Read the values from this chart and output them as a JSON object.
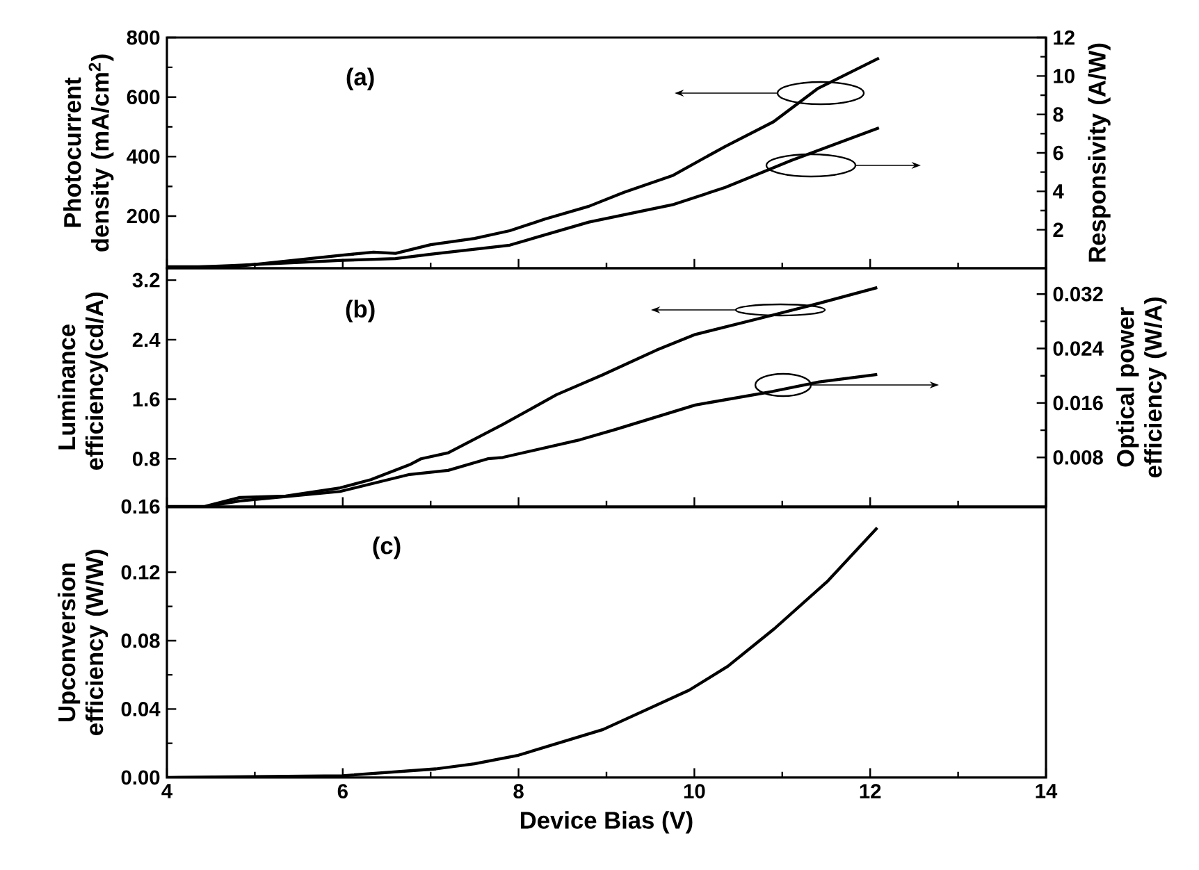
{
  "chart_data": [
    {
      "type": "line",
      "annotations": [
        "(a)"
      ],
      "ylabel": "Photocurrent density (mA/cm$^{2}$)",
      "y2label": "Responsivity (A/W)",
      "xlim": [
        4,
        14
      ],
      "xticks": [
        4,
        6,
        8,
        10,
        12,
        14
      ],
      "ylim": [
        25,
        800
      ],
      "yticks": [
        200,
        400,
        600,
        800
      ],
      "y2lim": [
        0,
        12
      ],
      "y2ticks": [
        2,
        4,
        6,
        8,
        10,
        12
      ],
      "tick_labels": "y",
      "series": [
        {
          "color": "#000000",
          "x": [
            4,
            4.75,
            6,
            6.35,
            6.6,
            7.0,
            7.5,
            7.9,
            8.3,
            8.8,
            9.2,
            9.75,
            10.35,
            10.9,
            11.4,
            12.1
          ],
          "values": [
            30,
            30,
            69,
            79,
            75,
            104,
            125,
            151,
            190,
            233,
            280,
            336,
            434,
            517,
            628,
            731
          ]
        },
        {
          "color": "#000000",
          "axis": "y2",
          "x": [
            4,
            4.75,
            6,
            6.6,
            7.0,
            7.9,
            8.8,
            9.75,
            10.35,
            11.1,
            12.1
          ],
          "values": [
            0,
            0.14,
            0.41,
            0.5,
            0.73,
            1.2,
            2.4,
            3.3,
            4.2,
            5.6,
            7.3
          ]
        }
      ]
    },
    {
      "type": "line",
      "annotations": [
        "(b)"
      ],
      "ylabel": "Luminance efficiency(cd/A)",
      "y2label": "Optical power efficiency (W/A)",
      "xlim": [
        4,
        14
      ],
      "xticks": [
        4,
        6,
        8,
        10,
        12,
        14
      ],
      "ylim": [
        0.16,
        3.36
      ],
      "yticks": [
        0.16,
        0.8,
        1.6,
        2.4,
        3.2
      ],
      "y2lim": [
        0.0008,
        0.0358
      ],
      "y2ticks": [
        0.008,
        0.016,
        0.024,
        0.032
      ],
      "tick_labels": "y",
      "series": [
        {
          "color": "#000000",
          "x": [
            4,
            4.43,
            4.83,
            5.35,
            5.97,
            6.32,
            6.76,
            6.89,
            7.2,
            7.82,
            8.43,
            8.96,
            9.57,
            10.01,
            10.89,
            11.42,
            12.08
          ],
          "values": [
            0.16,
            0.16,
            0.28,
            0.3,
            0.41,
            0.52,
            0.72,
            0.8,
            0.88,
            1.26,
            1.66,
            1.93,
            2.26,
            2.47,
            2.73,
            2.89,
            3.1
          ]
        },
        {
          "color": "#000000",
          "axis": "y2",
          "x": [
            4.45,
            4.83,
            5.97,
            6.76,
            7.2,
            7.65,
            7.82,
            8.7,
            9.1,
            10.01,
            10.89,
            11.42,
            12.08
          ],
          "values": [
            0.0008,
            0.0016,
            0.003,
            0.0055,
            0.0061,
            0.0078,
            0.008,
            0.0106,
            0.0121,
            0.0157,
            0.0177,
            0.0191,
            0.0202
          ]
        }
      ]
    },
    {
      "type": "line",
      "annotations": [
        "(c)"
      ],
      "ylabel": "Upconversion efficiency (W/W)",
      "xlabel": "Device Bias (V)",
      "xlim": [
        4,
        14
      ],
      "xticks": [
        4,
        6,
        8,
        10,
        12,
        14
      ],
      "ylim": [
        0,
        0.158
      ],
      "yticks": [
        {
          "value": 0,
          "label": "0.00"
        },
        0.04,
        0.08,
        0.12
      ],
      "series": [
        {
          "color": "#000000",
          "x": [
            4,
            6,
            7.06,
            7.5,
            8.0,
            8.96,
            9.94,
            10.38,
            10.91,
            11.52,
            12.08
          ],
          "values": [
            0,
            0.001,
            0.005,
            0.008,
            0.013,
            0.028,
            0.051,
            0.065,
            0.087,
            0.115,
            0.146
          ]
        }
      ]
    }
  ]
}
